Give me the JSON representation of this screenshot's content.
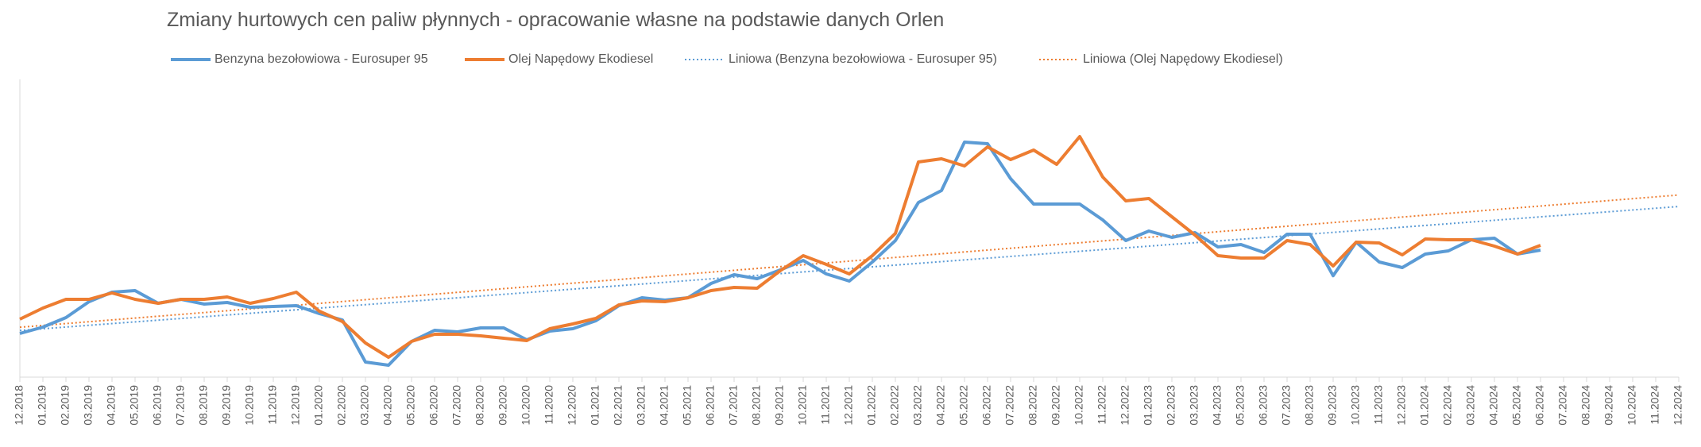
{
  "chart_data": {
    "type": "line",
    "title": "Zmiany hurtowych cen paliw płynnych - opracowanie własne na podstawie danych Orlen",
    "categories": [
      "12.2018",
      "01.2019",
      "02.2019",
      "03.2019",
      "04.2019",
      "05.2019",
      "06.2019",
      "07.2019",
      "08.2019",
      "09.2019",
      "10.2019",
      "11.2019",
      "12.2019",
      "01.2020",
      "02.2020",
      "03.2020",
      "04.2020",
      "05.2020",
      "06.2020",
      "07.2020",
      "08.2020",
      "09.2020",
      "10.2020",
      "11.2020",
      "12.2020",
      "01.2021",
      "02.2021",
      "03.2021",
      "04.2021",
      "05.2021",
      "06.2021",
      "07.2021",
      "08.2021",
      "09.2021",
      "10.2021",
      "11.2021",
      "12.2021",
      "01.2022",
      "02.2022",
      "03.2022",
      "04.2022",
      "05.2022",
      "06.2022",
      "07.2022",
      "08.2022",
      "09.2022",
      "10.2022",
      "11.2022",
      "12.2022",
      "01.2023",
      "02.2023",
      "03.2023",
      "04.2023",
      "05.2023",
      "06.2023",
      "07.2023",
      "08.2023",
      "09.2023",
      "10.2023",
      "11.2023",
      "12.2023",
      "01.2024",
      "02.2024",
      "03.2024",
      "04.2024",
      "05.2024",
      "06.2024",
      "07.2024",
      "08.2024",
      "09.2024",
      "10.2024",
      "11.2024",
      "12.2024"
    ],
    "series": [
      {
        "name": "Benzyna bezołowiowa - Eurosuper 95",
        "color": "#5b9bd5",
        "trendline": {
          "name": "Liniowa (Benzyna bezołowiowa - Eurosuper 95)",
          "style": "dotted"
        },
        "values": [
          3970,
          4082,
          4250,
          4530,
          4698,
          4726,
          4502,
          4572,
          4488,
          4516,
          4432,
          4446,
          4460,
          4320,
          4208,
          3466,
          3410,
          3830,
          4026,
          3998,
          4068,
          4068,
          3858,
          4012,
          4054,
          4194,
          4460,
          4600,
          4558,
          4600,
          4852,
          5006,
          4936,
          5090,
          5258,
          5020,
          4894,
          5230,
          5608,
          6280,
          6490,
          7344,
          7316,
          6700,
          6252,
          6252,
          6252,
          5972,
          5608,
          5776,
          5664,
          5748,
          5496,
          5538,
          5398,
          5720,
          5720,
          4988,
          5580,
          5230,
          5132,
          5370,
          5426,
          5622,
          5650,
          5370,
          5440,
          null,
          null,
          null,
          null,
          null,
          null
        ]
      },
      {
        "name": "Olej Napędowy Ekodiesel",
        "color": "#ed7d31",
        "trendline": {
          "name": "Liniowa (Olej Napędowy Ekodiesel)",
          "style": "dotted"
        },
        "values": [
          4222,
          4418,
          4572,
          4572,
          4684,
          4572,
          4502,
          4572,
          4572,
          4614,
          4502,
          4586,
          4698,
          4362,
          4180,
          3802,
          3550,
          3830,
          3956,
          3956,
          3928,
          3886,
          3844,
          4054,
          4138,
          4236,
          4474,
          4544,
          4530,
          4600,
          4726,
          4782,
          4768,
          5076,
          5342,
          5188,
          5020,
          5342,
          5734,
          6994,
          7050,
          6924,
          7260,
          7036,
          7204,
          6952,
          7442,
          6728,
          6308,
          6350,
          6028,
          5706,
          5342,
          5300,
          5300,
          5608,
          5538,
          5160,
          5580,
          5566,
          5356,
          5636,
          5622,
          5622,
          5510,
          5370,
          5524,
          null,
          null,
          null,
          null,
          null,
          null
        ]
      }
    ],
    "ylim": [
      3200,
      8450
    ],
    "legend": "top"
  }
}
